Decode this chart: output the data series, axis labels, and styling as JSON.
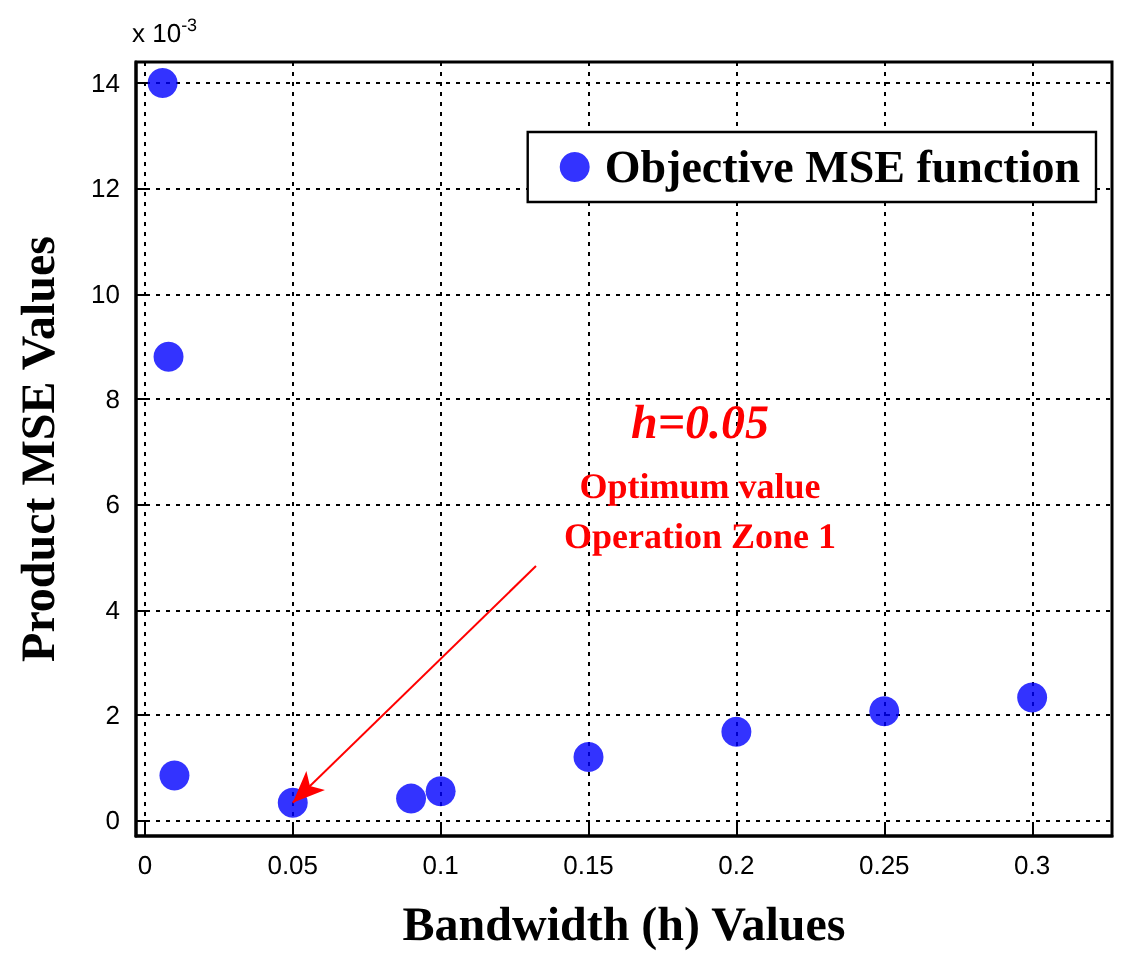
{
  "chart_data": {
    "type": "scatter",
    "xlabel": "Bandwidth (h) Values",
    "ylabel": "Product MSE Values",
    "x": [
      0.006,
      0.008,
      0.01,
      0.05,
      0.09,
      0.1,
      0.15,
      0.2,
      0.25,
      0.3
    ],
    "series": [
      {
        "name": "Objective MSE function",
        "color": "#0000ff",
        "values": [
          14,
          8.8,
          0.85,
          0.33,
          0.41,
          0.55,
          1.2,
          1.68,
          2.07,
          2.33
        ]
      }
    ],
    "xlim": [
      -0.003,
      0.327
    ],
    "xticks": [
      0,
      0.05,
      0.1,
      0.15,
      0.2,
      0.25,
      0.3
    ],
    "ylim": [
      -0.3,
      14.4
    ],
    "yticks": [
      0,
      2,
      4,
      6,
      8,
      10,
      12,
      14
    ],
    "annotations": [
      "x 10$^{-3}$",
      "h=0.05",
      "Optimum value",
      {
        "text": "Operation Zone 1",
        "x": 0.05,
        "y": 0.33
      }
    ],
    "grid": true,
    "legend": "top right",
    "marker": "circle"
  }
}
